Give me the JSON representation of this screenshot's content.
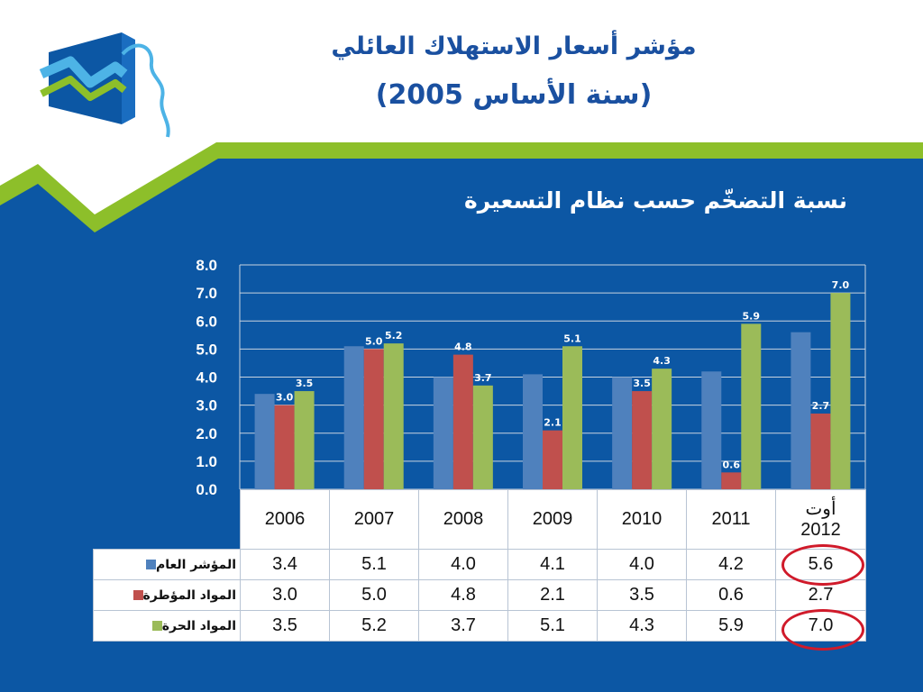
{
  "header": {
    "title_line1": "مؤشر أسعار الاستهلاك العائلي",
    "title_line2": "(سنة الأساس 2005)"
  },
  "subtitle": "نسبة التضخّم حسب نظام التسعيرة",
  "colors": {
    "background_blue": "#0c57a4",
    "accent_green": "#8dbf2a",
    "series_general": "#4f81bd",
    "series_regulated": "#c0504d",
    "series_free": "#9bbb59",
    "highlight_circle": "#d01a2a"
  },
  "logo": {
    "icon": "chart-logo-icon"
  },
  "chart_data": {
    "type": "bar",
    "categories": [
      "2006",
      "2007",
      "2008",
      "2009",
      "2010",
      "2011",
      "أوت 2012"
    ],
    "category_lines": [
      [
        "2006"
      ],
      [
        "2007"
      ],
      [
        "2008"
      ],
      [
        "2009"
      ],
      [
        "2010"
      ],
      [
        "2011"
      ],
      [
        "أوت",
        "2012"
      ]
    ],
    "series": [
      {
        "name": "المؤشر العام",
        "values": [
          3.4,
          5.1,
          4.0,
          4.1,
          4.0,
          4.2,
          5.6
        ],
        "color": "#4f81bd",
        "data_labels": false
      },
      {
        "name": "المواد المؤطرة",
        "values": [
          3.0,
          5.0,
          4.8,
          2.1,
          3.5,
          0.6,
          2.7
        ],
        "color": "#c0504d",
        "data_labels": true
      },
      {
        "name": "المواد الحرة",
        "values": [
          3.5,
          5.2,
          3.7,
          5.1,
          4.3,
          5.9,
          7.0
        ],
        "color": "#9bbb59",
        "data_labels": true
      }
    ],
    "ylim": [
      0,
      8
    ],
    "yticks": [
      "8.0",
      "7.0",
      "6.0",
      "5.0",
      "4.0",
      "3.0",
      "2.0",
      "1.0",
      "0.0"
    ],
    "grid": true,
    "legend": "data-table",
    "highlighted_cells": [
      "المؤشر العام - أوت 2012",
      "المواد الحرة - أوت 2012"
    ]
  }
}
